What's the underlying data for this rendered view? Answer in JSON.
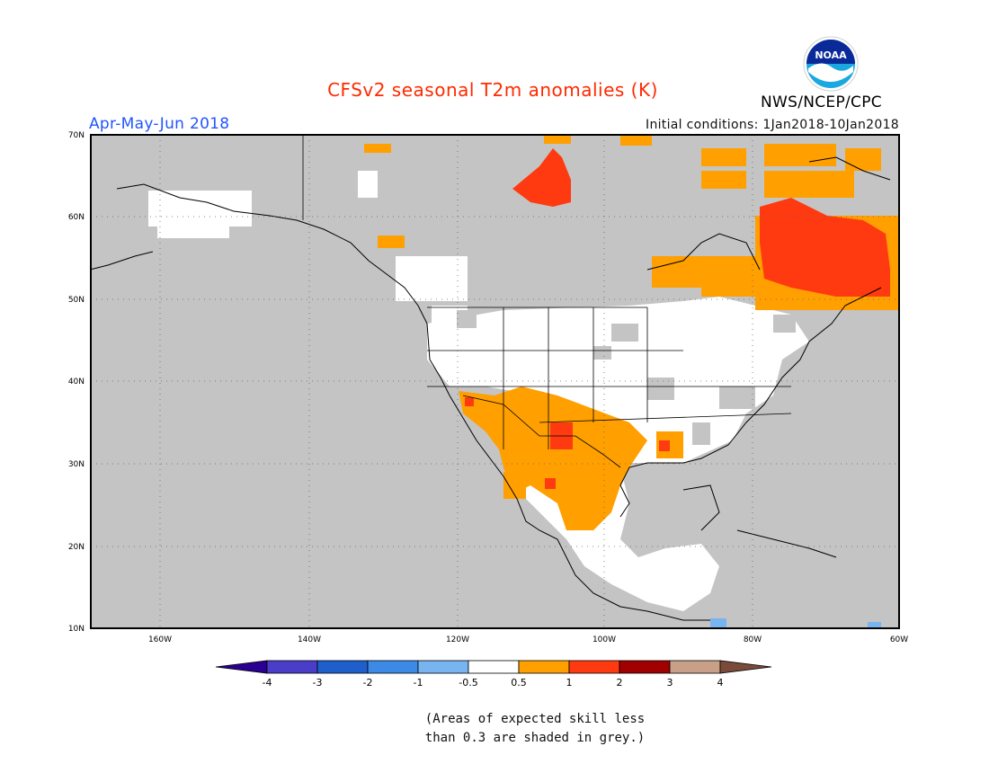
{
  "header": {
    "title": "CFSv2 seasonal T2m anomalies (K)",
    "period": "Apr-May-Jun 2018",
    "initial_conditions": "Initial conditions: 1Jan2018-10Jan2018",
    "agency": "NWS/NCEP/CPC",
    "logo_text": "NOAA"
  },
  "map": {
    "projection": "lat-lon",
    "lon_range": [
      -170,
      -60
    ],
    "lat_range": [
      10,
      70
    ],
    "latitude_labels": [
      "70N",
      "60N",
      "50N",
      "40N",
      "30N",
      "20N",
      "10N"
    ],
    "longitude_labels": [
      "160W",
      "140W",
      "120W",
      "100W",
      "80W",
      "60W"
    ],
    "gridlines": "dotted",
    "ocean_color": "#c4c4c4",
    "low_skill_color": "#c4c4c4"
  },
  "colorbar": {
    "tick_labels": [
      "-4",
      "-3",
      "-2",
      "-1",
      "-0.5",
      "0.5",
      "1",
      "2",
      "3",
      "4"
    ],
    "colors": [
      "#2a0090",
      "#4a3ec8",
      "#1e5fcc",
      "#3c8ae6",
      "#78b4f0",
      "#ffffff",
      "#ff9f00",
      "#ff3a10",
      "#a00000",
      "#c8a088",
      "#7a4a3a"
    ]
  },
  "footnote": {
    "line1": "(Areas of expected skill less",
    "line2": "than 0.3 are shaded in grey.)"
  }
}
